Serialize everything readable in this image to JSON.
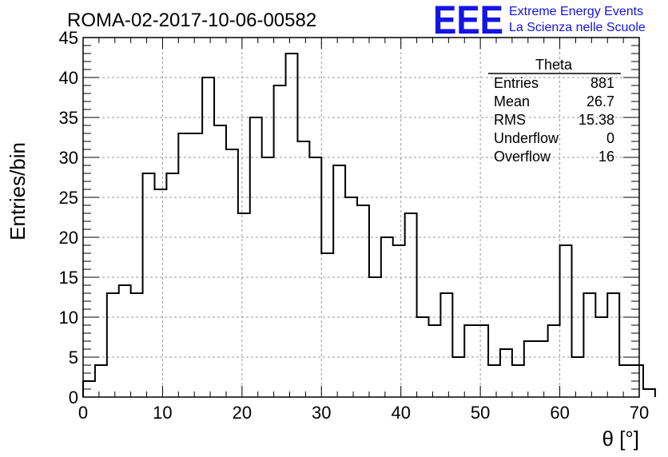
{
  "header": {
    "run_title": "ROMA-02-2017-10-06-00582",
    "logo_text": "EEE",
    "logo_line1": "Extreme Energy Events",
    "logo_line2": "La Scienza nelle Scuole",
    "logo_color": "#1414e6"
  },
  "stats_box": {
    "title": "Theta",
    "rows": [
      {
        "label": "Entries",
        "value": "881"
      },
      {
        "label": "Mean",
        "value": "26.7"
      },
      {
        "label": "RMS",
        "value": "15.38"
      },
      {
        "label": "Underflow",
        "value": "0"
      },
      {
        "label": "Overflow",
        "value": "16"
      }
    ]
  },
  "chart_data": {
    "type": "bar",
    "style": "step-histogram",
    "title": "ROMA-02-2017-10-06-00582",
    "xlabel": "θ [°]",
    "ylabel": "Entries/bin",
    "xlim": [
      0,
      70
    ],
    "ylim": [
      0,
      45
    ],
    "bin_width": 1.5,
    "bin_start": 0,
    "values": [
      2,
      4,
      13,
      14,
      13,
      28,
      26,
      28,
      33,
      33,
      40,
      34,
      31,
      23,
      35,
      30,
      39,
      43,
      32,
      30,
      18,
      29,
      25,
      24,
      15,
      20,
      19,
      23,
      10,
      9,
      13,
      5,
      9,
      9,
      4,
      6,
      4,
      7,
      7,
      9,
      19,
      5,
      13,
      10,
      13,
      4,
      4,
      1
    ],
    "x_ticks": [
      "0",
      "10",
      "20",
      "30",
      "40",
      "50",
      "60",
      "70"
    ],
    "y_ticks": [
      "0",
      "5",
      "10",
      "15",
      "20",
      "25",
      "30",
      "35",
      "40",
      "45"
    ],
    "grid": true,
    "legend": "none"
  }
}
